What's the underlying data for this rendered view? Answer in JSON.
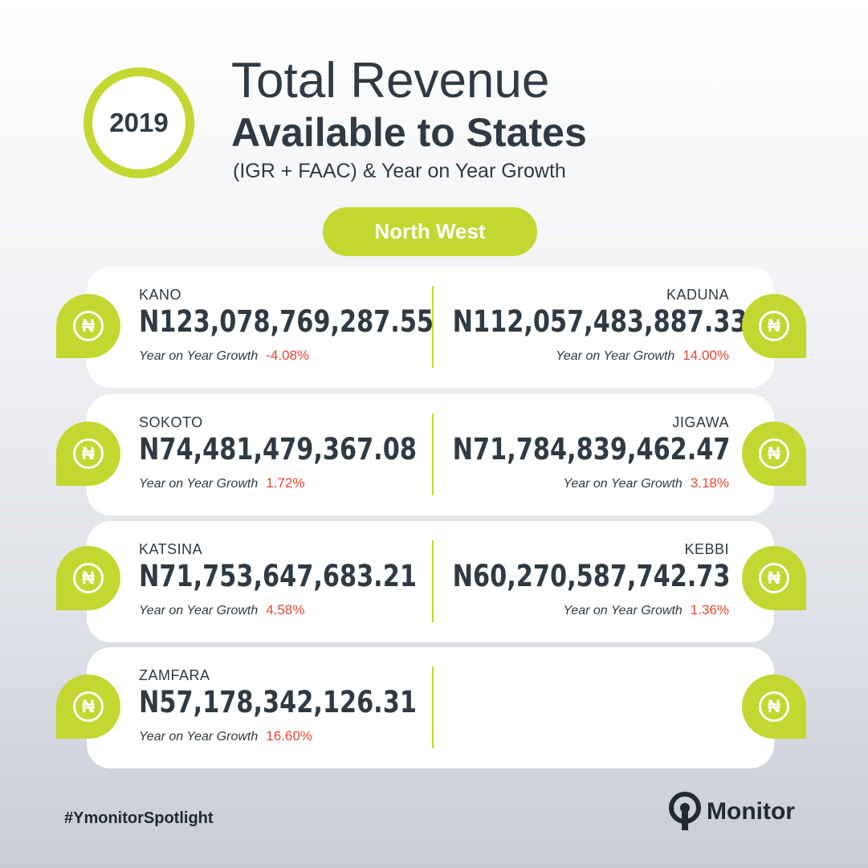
{
  "year": "2019",
  "title": {
    "line1": "Total Revenue",
    "line2": "Available to States",
    "line3": "(IGR + FAAC) & Year on Year Growth"
  },
  "region": "North West",
  "growth_label": "Year on Year Growth",
  "currency_icon": "naira-icon",
  "currency_symbol": "₦",
  "colors": {
    "accent": "#c4d630",
    "dark": "#2f3a44",
    "growth": "#e8452e"
  },
  "rows": [
    {
      "left": {
        "state": "KANO",
        "amount": "N123,078,769,287.55",
        "growth": "-4.08%"
      },
      "right": {
        "state": "KADUNA",
        "amount": "N112,057,483,887.33",
        "growth": "14.00%"
      }
    },
    {
      "left": {
        "state": "SOKOTO",
        "amount": "N74,481,479,367.08",
        "growth": "1.72%"
      },
      "right": {
        "state": "JIGAWA",
        "amount": "N71,784,839,462.47",
        "growth": "3.18%"
      }
    },
    {
      "left": {
        "state": "KATSINA",
        "amount": "N71,753,647,683.21",
        "growth": "4.58%"
      },
      "right": {
        "state": "KEBBI",
        "amount": "N60,270,587,742.73",
        "growth": "1.36%"
      }
    },
    {
      "left": {
        "state": "ZAMFARA",
        "amount": "N57,178,342,126.31",
        "growth": "16.60%"
      }
    }
  ],
  "hashtag": "#YmonitorSpotlight",
  "brand": "Monitor"
}
